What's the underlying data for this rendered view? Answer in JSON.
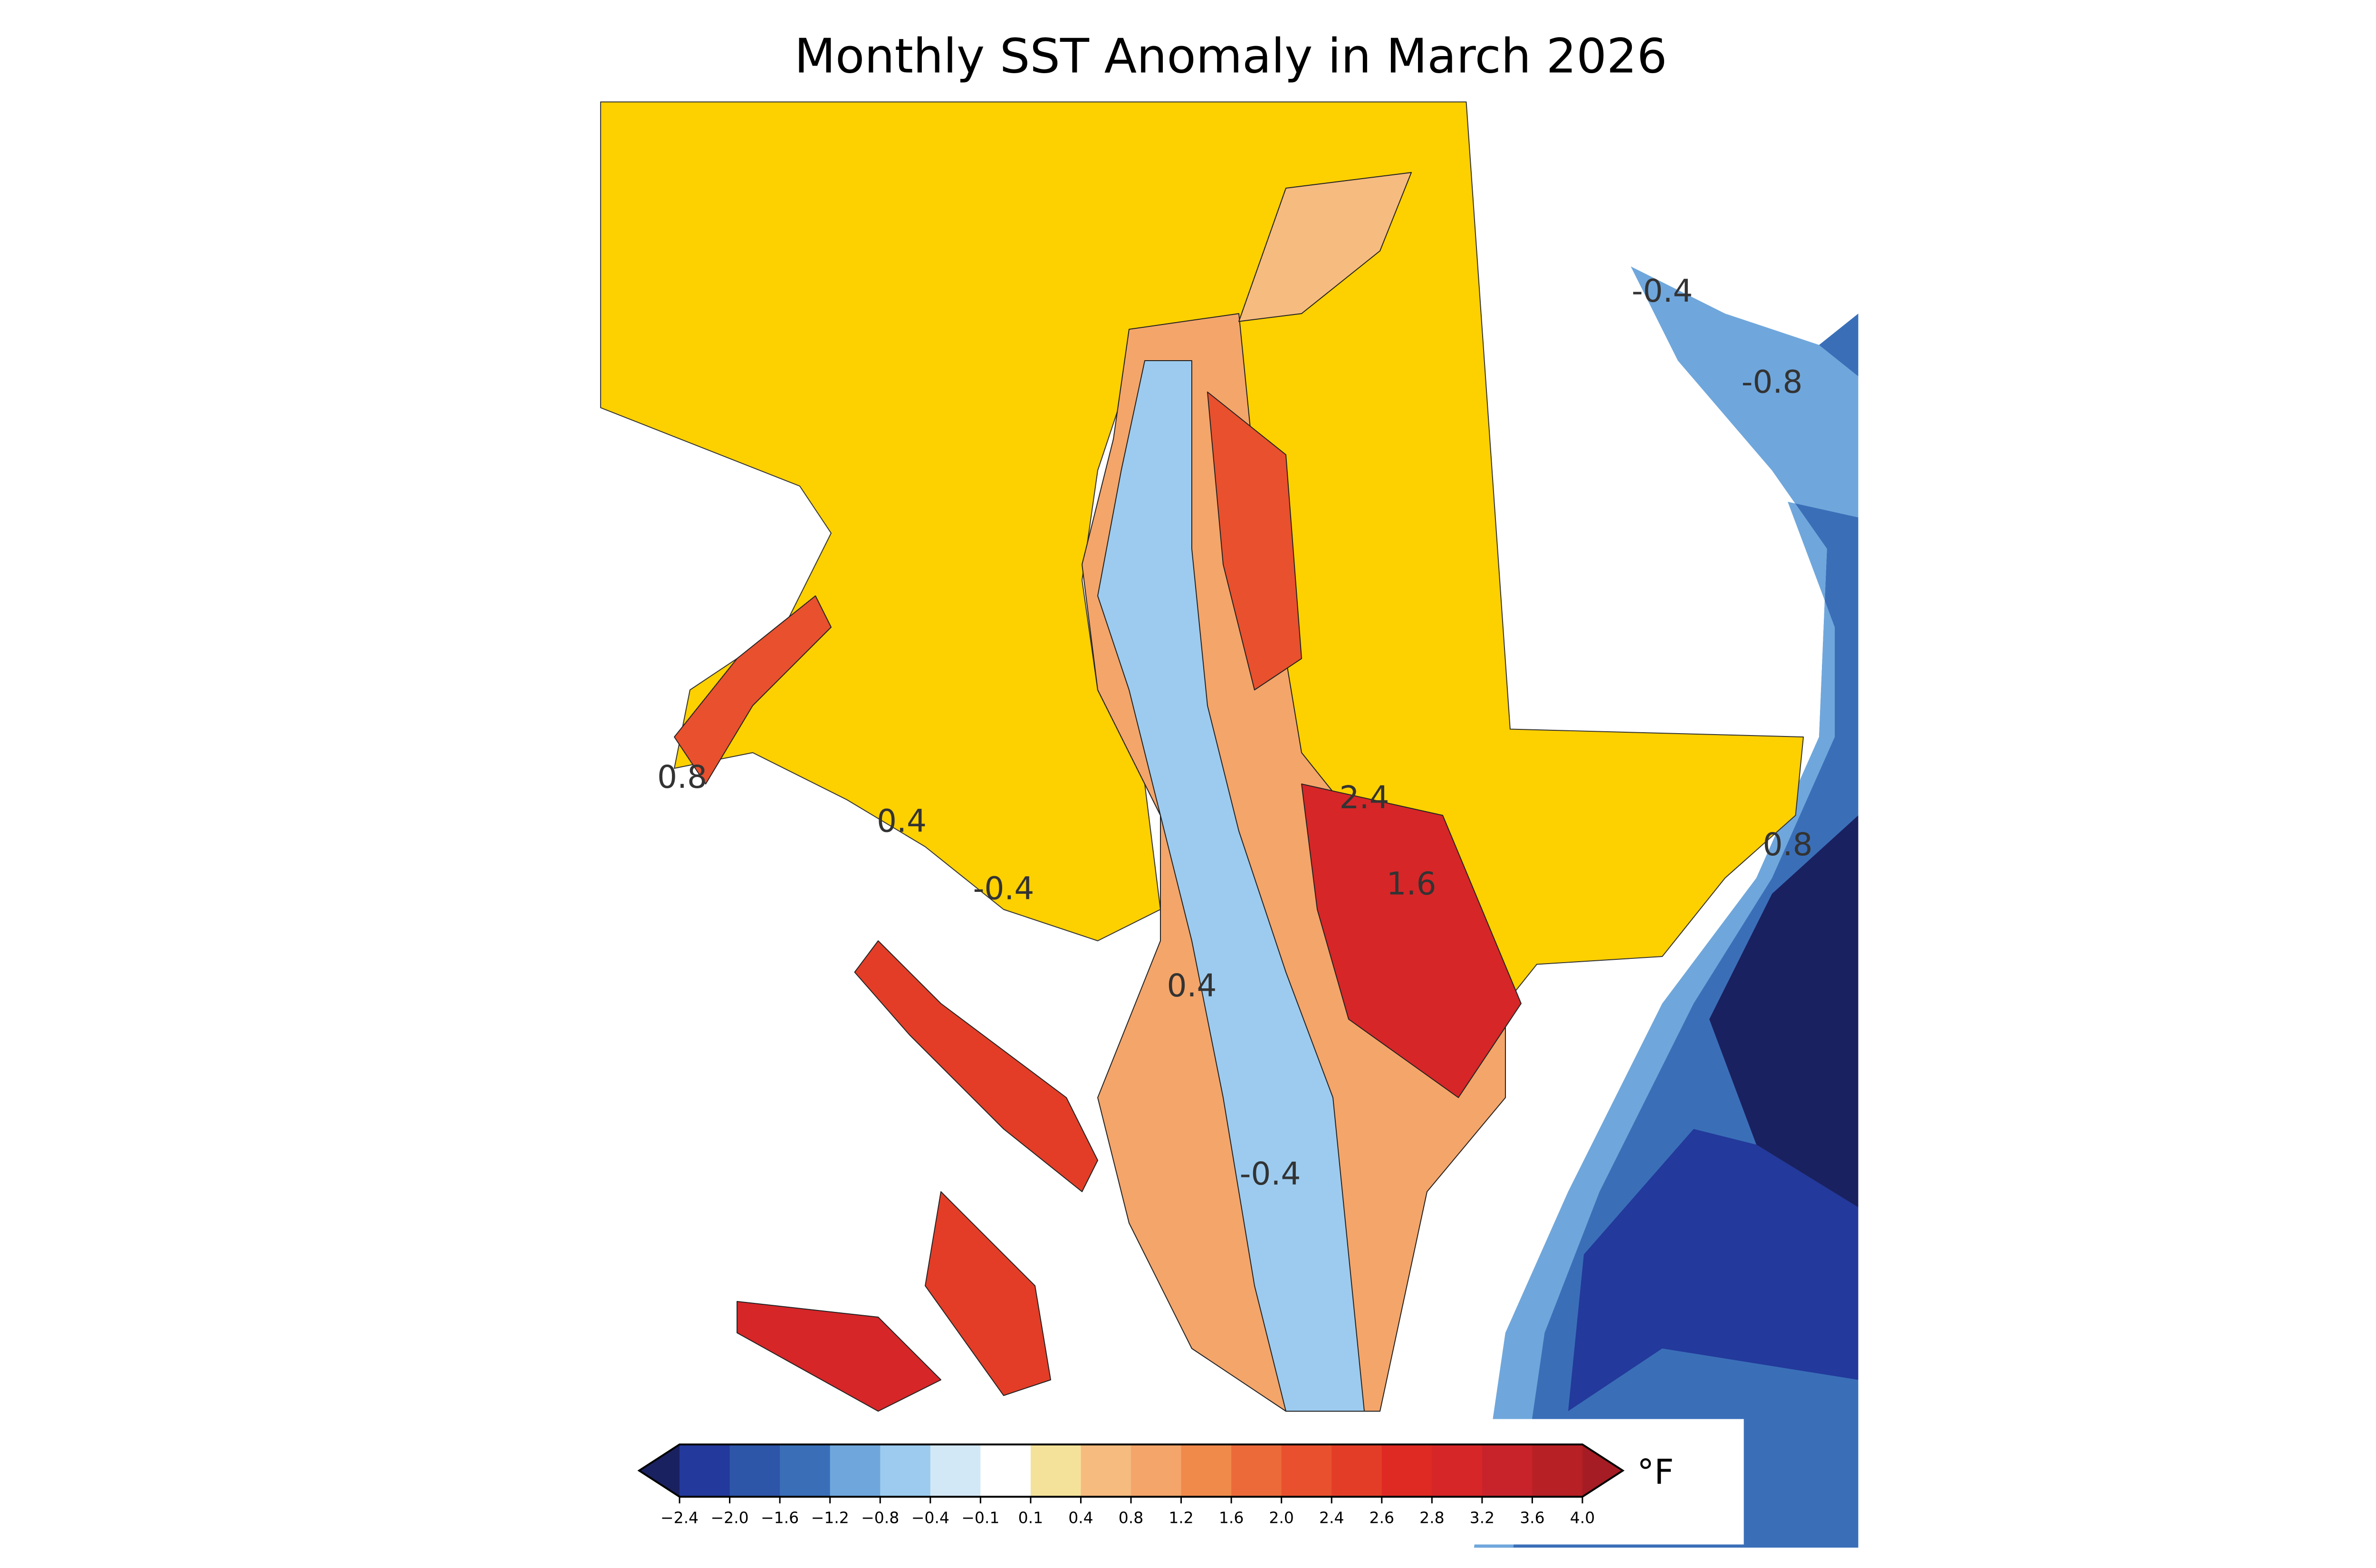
{
  "title": "Monthly SST Anomaly in March 2026",
  "colorbar": {
    "unit": "°F",
    "ticks": [
      {
        "value": -2.4,
        "label": "−2.4"
      },
      {
        "value": -2.0,
        "label": "−2.0"
      },
      {
        "value": -1.6,
        "label": "−1.6"
      },
      {
        "value": -1.2,
        "label": "−1.2"
      },
      {
        "value": -0.8,
        "label": "−0.8"
      },
      {
        "value": -0.4,
        "label": "−0.4"
      },
      {
        "value": -0.1,
        "label": "−0.1"
      },
      0.1,
      0.4,
      0.8,
      1.2,
      1.6,
      {
        "value": 2.0,
        "label": "2.0"
      },
      2.4,
      2.6,
      2.8,
      3.2,
      3.6,
      {
        "value": 4.0,
        "label": "4.0"
      }
    ],
    "colors": [
      "#23399b",
      "#2d55a8",
      "#3a6fb8",
      "#6fa7dc",
      "#9ccbef",
      "#d3e8f6",
      "#ffffff",
      "#f5e29a",
      "#f6bb7f",
      "#f4a56a",
      "#f08a4b",
      "#ec6a3a",
      "#e8502e",
      "#e33d27",
      "#de2a23",
      "#d62628",
      "#c8232a",
      "#b72025"
    ],
    "under_color": "#1a2160",
    "over_color": "#a51c24"
  },
  "contour_labels": [
    "0.8",
    "0.4",
    "-0.4",
    "-0.4",
    "-0.8",
    "2.4",
    "1.6",
    "0.4",
    "-0.4",
    "0.8"
  ]
}
